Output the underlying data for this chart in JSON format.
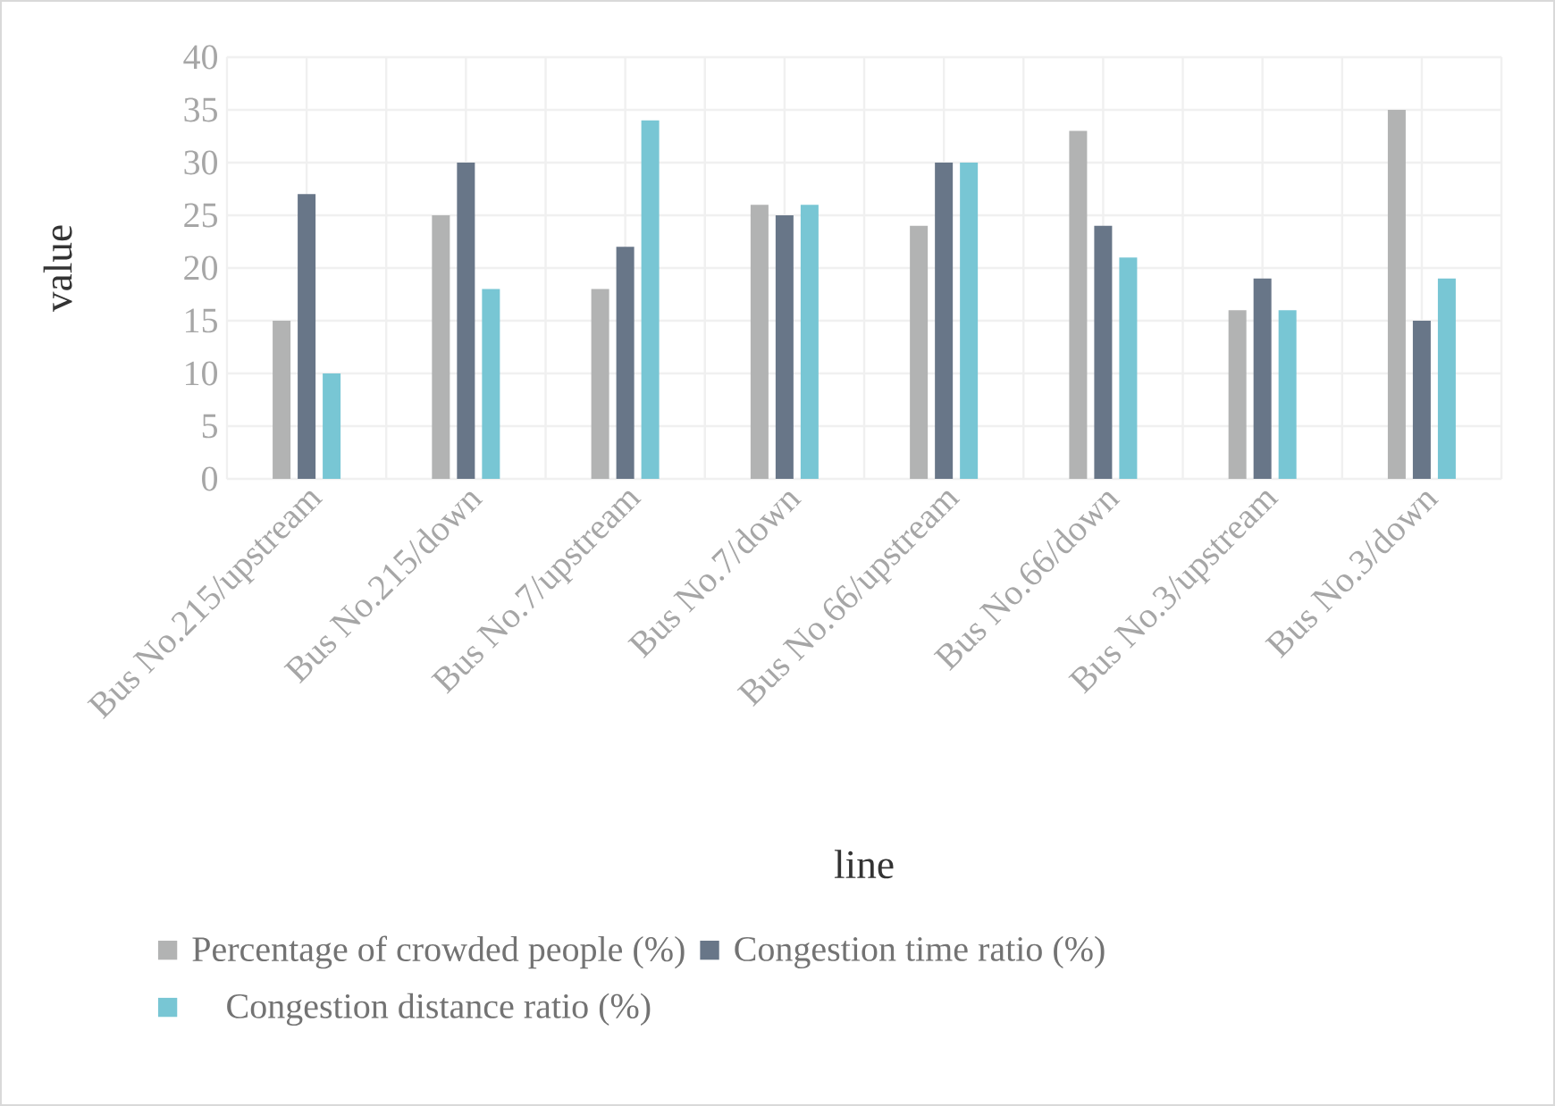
{
  "chart_data": {
    "type": "bar",
    "xlabel": "line",
    "ylabel": "value",
    "categories": [
      "Bus No.215/upstream",
      "Bus No.215/down",
      "Bus No.7/upstream",
      "Bus No.7/down",
      "Bus No.66/upstream",
      "Bus No.66/down",
      "Bus No.3/upstream",
      "Bus No.3/down"
    ],
    "series": [
      {
        "name": "Percentage of crowded people (%)",
        "color": "#b2b3b3",
        "values": [
          15,
          25,
          18,
          26,
          24,
          33,
          16,
          35
        ]
      },
      {
        "name": "Congestion time ratio (%)",
        "color": "#687688",
        "values": [
          27,
          30,
          22,
          25,
          30,
          24,
          19,
          15
        ]
      },
      {
        "name": "Congestion distance ratio (%)",
        "color": "#78c6d4",
        "values": [
          10,
          18,
          34,
          26,
          30,
          21,
          16,
          19
        ]
      }
    ],
    "ylim": [
      0,
      40
    ],
    "yticks": [
      0,
      5,
      10,
      15,
      20,
      25,
      30,
      35,
      40
    ],
    "grid": true,
    "legend": "bottom"
  }
}
